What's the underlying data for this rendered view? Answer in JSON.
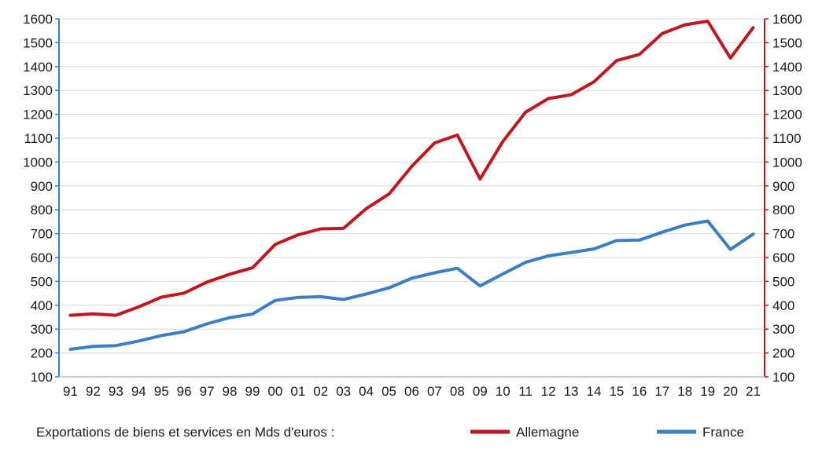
{
  "chart_data": {
    "type": "line",
    "title": "",
    "xlabel": "",
    "ylabel": "",
    "legend_title": "Exportations de biens et services en Mds d'euros :",
    "legend_position": "bottom",
    "grid": true,
    "ylim": [
      100,
      1600
    ],
    "yticks": [
      "100",
      "200",
      "300",
      "400",
      "500",
      "600",
      "700",
      "800",
      "900",
      "1000",
      "1100",
      "1200",
      "1300",
      "1400",
      "1500",
      "1600"
    ],
    "y2ticks": [
      "100",
      "200",
      "300",
      "400",
      "500",
      "600",
      "700",
      "800",
      "900",
      "1000",
      "1100",
      "1200",
      "1300",
      "1400",
      "1500",
      "1600"
    ],
    "categories": [
      "91",
      "92",
      "93",
      "94",
      "95",
      "96",
      "97",
      "98",
      "99",
      "00",
      "01",
      "02",
      "03",
      "04",
      "05",
      "06",
      "07",
      "08",
      "09",
      "10",
      "11",
      "12",
      "13",
      "14",
      "15",
      "16",
      "17",
      "18",
      "19",
      "20",
      "21"
    ],
    "series": [
      {
        "name": "Allemagne",
        "color": "#c0171f",
        "values": [
          358,
          364,
          358,
          393,
          434,
          451,
          497,
          530,
          557,
          655,
          695,
          720,
          722,
          805,
          866,
          982,
          1080,
          1113,
          929,
          1086,
          1209,
          1266,
          1282,
          1336,
          1425,
          1451,
          1538,
          1575,
          1590,
          1436,
          1563
        ]
      },
      {
        "name": "France",
        "color": "#3a7ec4",
        "values": [
          215,
          228,
          231,
          250,
          273,
          289,
          322,
          348,
          363,
          420,
          433,
          436,
          424,
          447,
          473,
          513,
          536,
          555,
          481,
          531,
          580,
          607,
          621,
          636,
          671,
          673,
          706,
          736,
          753,
          634,
          698
        ]
      }
    ]
  }
}
